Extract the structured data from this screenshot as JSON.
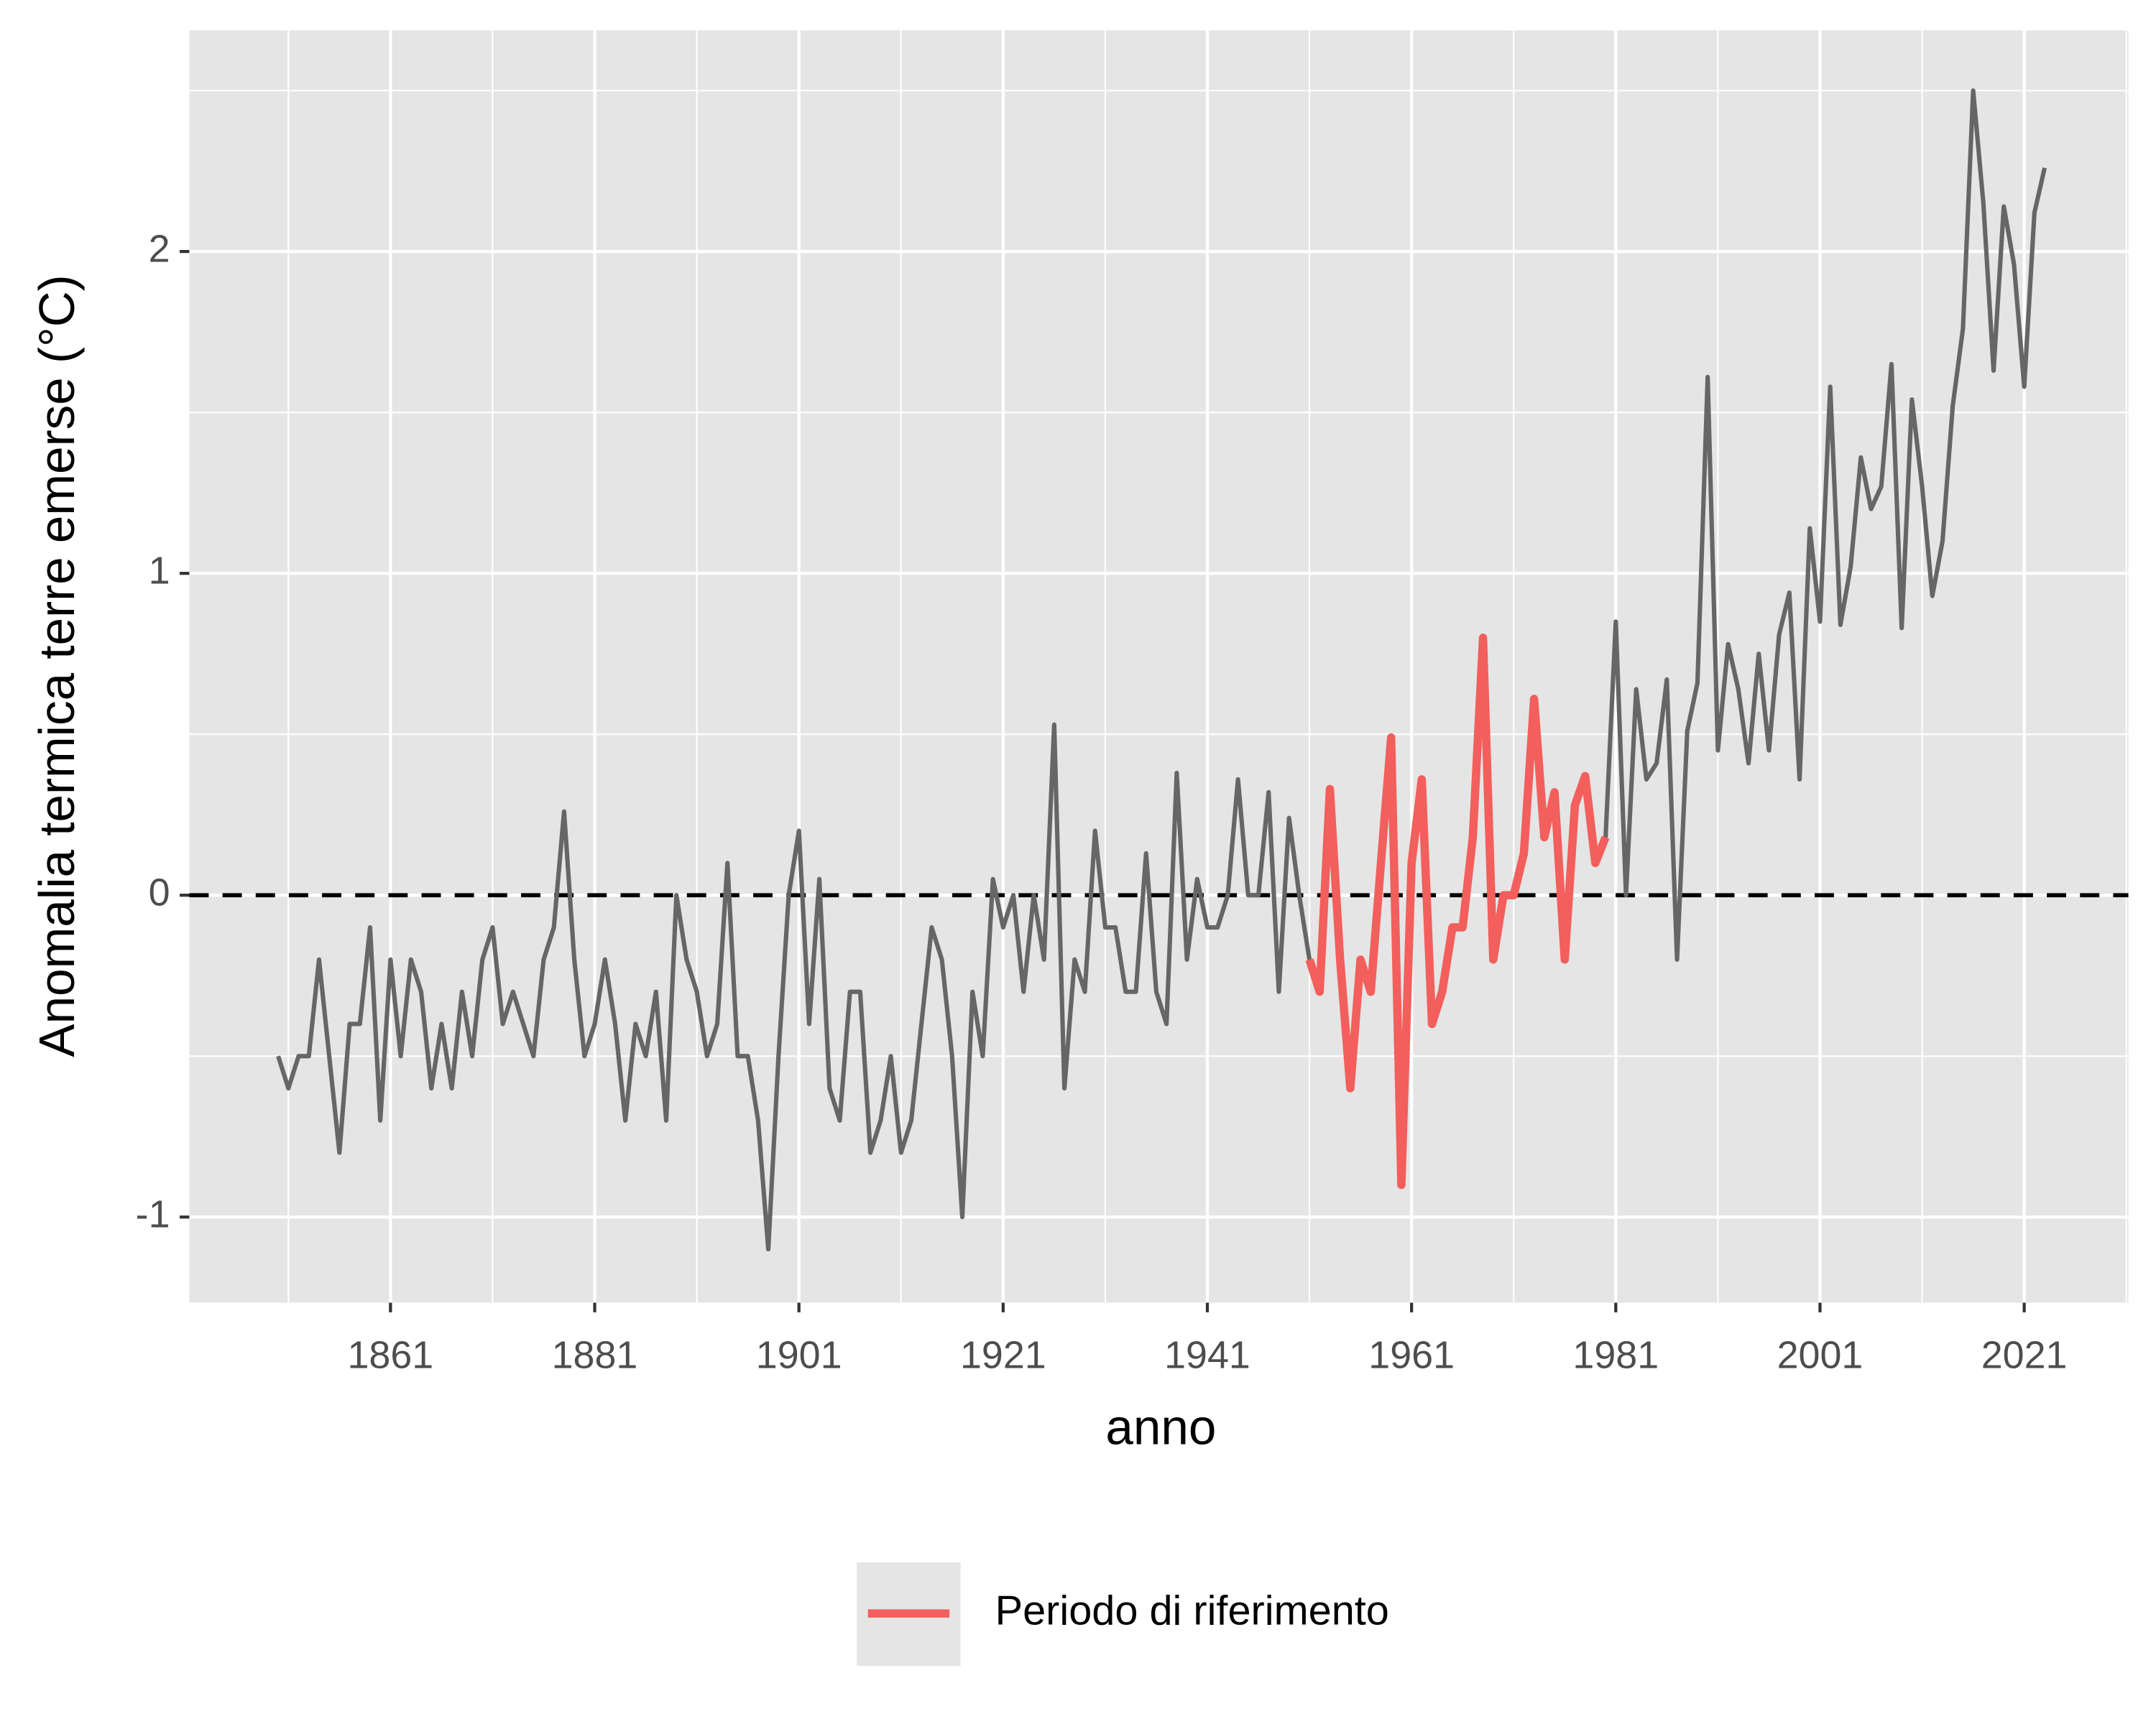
{
  "chart_data": {
    "type": "line",
    "x_label": "anno",
    "y_label": "Anomalia termica terre emerse (°C)",
    "x": [
      1850,
      1851,
      1852,
      1853,
      1854,
      1855,
      1856,
      1857,
      1858,
      1859,
      1860,
      1861,
      1862,
      1863,
      1864,
      1865,
      1866,
      1867,
      1868,
      1869,
      1870,
      1871,
      1872,
      1873,
      1874,
      1875,
      1876,
      1877,
      1878,
      1879,
      1880,
      1881,
      1882,
      1883,
      1884,
      1885,
      1886,
      1887,
      1888,
      1889,
      1890,
      1891,
      1892,
      1893,
      1894,
      1895,
      1896,
      1897,
      1898,
      1899,
      1900,
      1901,
      1902,
      1903,
      1904,
      1905,
      1906,
      1907,
      1908,
      1909,
      1910,
      1911,
      1912,
      1913,
      1914,
      1915,
      1916,
      1917,
      1918,
      1919,
      1920,
      1921,
      1922,
      1923,
      1924,
      1925,
      1926,
      1927,
      1928,
      1929,
      1930,
      1931,
      1932,
      1933,
      1934,
      1935,
      1936,
      1937,
      1938,
      1939,
      1940,
      1941,
      1942,
      1943,
      1944,
      1945,
      1946,
      1947,
      1948,
      1949,
      1950,
      1951,
      1952,
      1953,
      1954,
      1955,
      1956,
      1957,
      1958,
      1959,
      1960,
      1961,
      1962,
      1963,
      1964,
      1965,
      1966,
      1967,
      1968,
      1969,
      1970,
      1971,
      1972,
      1973,
      1974,
      1975,
      1976,
      1977,
      1978,
      1979,
      1980,
      1981,
      1982,
      1983,
      1984,
      1985,
      1986,
      1987,
      1988,
      1989,
      1990,
      1991,
      1992,
      1993,
      1994,
      1995,
      1996,
      1997,
      1998,
      1999,
      2000,
      2001,
      2002,
      2003,
      2004,
      2005,
      2006,
      2007,
      2008,
      2009,
      2010,
      2011,
      2012,
      2013,
      2014,
      2015,
      2016,
      2017,
      2018,
      2019,
      2020,
      2021,
      2022,
      2023
    ],
    "series": [
      {
        "color": "#666666",
        "values": [
          -0.5,
          -0.6,
          -0.5,
          -0.5,
          -0.2,
          -0.5,
          -0.8,
          -0.4,
          -0.4,
          -0.1,
          -0.7,
          -0.2,
          -0.5,
          -0.2,
          -0.3,
          -0.6,
          -0.4,
          -0.6,
          -0.3,
          -0.5,
          -0.2,
          -0.1,
          -0.4,
          -0.3,
          -0.4,
          -0.5,
          -0.2,
          -0.1,
          0.26,
          -0.2,
          -0.5,
          -0.4,
          -0.2,
          -0.4,
          -0.7,
          -0.4,
          -0.5,
          -0.3,
          -0.7,
          0.0,
          -0.2,
          -0.3,
          -0.5,
          -0.4,
          0.1,
          -0.5,
          -0.5,
          -0.7,
          -1.1,
          -0.5,
          0.0,
          0.2,
          -0.4,
          0.05,
          -0.6,
          -0.7,
          -0.3,
          -0.3,
          -0.8,
          -0.7,
          -0.5,
          -0.8,
          -0.7,
          -0.4,
          -0.1,
          -0.2,
          -0.5,
          -1.0,
          -0.3,
          -0.5,
          0.05,
          -0.1,
          0.0,
          -0.3,
          0.0,
          -0.2,
          0.53,
          -0.6,
          -0.2,
          -0.3,
          0.2,
          -0.1,
          -0.1,
          -0.3,
          -0.3,
          0.13,
          -0.3,
          -0.4,
          0.38,
          -0.2,
          0.05,
          -0.1,
          -0.1,
          0.0,
          0.36,
          0.0,
          0.0,
          0.32,
          -0.3,
          0.24,
          0.0,
          -0.2,
          -0.3,
          0.33,
          -0.2,
          -0.6,
          -0.2,
          -0.3,
          0.1,
          0.49,
          -0.9,
          0.1,
          0.36,
          -0.4,
          -0.3,
          -0.1,
          -0.1,
          0.18,
          0.8,
          -0.2,
          0.0,
          0.0,
          0.13,
          0.61,
          0.18,
          0.32,
          -0.2,
          0.28,
          0.37,
          0.1,
          0.18,
          0.85,
          0.0,
          0.64,
          0.36,
          0.41,
          0.67,
          -0.2,
          0.51,
          0.66,
          1.61,
          0.45,
          0.78,
          0.64,
          0.41,
          0.75,
          0.45,
          0.81,
          0.94,
          0.36,
          1.14,
          0.85,
          1.58,
          0.84,
          1.02,
          1.36,
          1.2,
          1.27,
          1.65,
          0.83,
          1.54,
          1.27,
          0.93,
          1.1,
          1.52,
          1.76,
          2.5,
          2.15,
          1.63,
          2.14,
          1.96,
          1.58,
          2.12,
          2.26
        ]
      },
      {
        "name": "Periodo di riferimento",
        "color": "#f25f5c",
        "values": [
          null,
          null,
          null,
          null,
          null,
          null,
          null,
          null,
          null,
          null,
          null,
          null,
          null,
          null,
          null,
          null,
          null,
          null,
          null,
          null,
          null,
          null,
          null,
          null,
          null,
          null,
          null,
          null,
          null,
          null,
          null,
          null,
          null,
          null,
          null,
          null,
          null,
          null,
          null,
          null,
          null,
          null,
          null,
          null,
          null,
          null,
          null,
          null,
          null,
          null,
          null,
          null,
          null,
          null,
          null,
          null,
          null,
          null,
          null,
          null,
          null,
          null,
          null,
          null,
          null,
          null,
          null,
          null,
          null,
          null,
          null,
          null,
          null,
          null,
          null,
          null,
          null,
          null,
          null,
          null,
          null,
          null,
          null,
          null,
          null,
          null,
          null,
          null,
          null,
          null,
          null,
          null,
          null,
          null,
          null,
          null,
          null,
          null,
          null,
          null,
          null,
          -0.2,
          -0.3,
          0.33,
          -0.2,
          -0.6,
          -0.2,
          -0.3,
          0.1,
          0.49,
          -0.9,
          0.1,
          0.36,
          -0.4,
          -0.3,
          -0.1,
          -0.1,
          0.18,
          0.8,
          -0.2,
          0.0,
          0.0,
          0.13,
          0.61,
          0.18,
          0.32,
          -0.2,
          0.28,
          0.37,
          0.1,
          0.18,
          null,
          null,
          null,
          null,
          null,
          null,
          null,
          null,
          null,
          null,
          null,
          null,
          null,
          null,
          null,
          null,
          null,
          null,
          null,
          null,
          null,
          null,
          null,
          null,
          null,
          null,
          null,
          null,
          null,
          null,
          null,
          null,
          null,
          null,
          null,
          null,
          null,
          null,
          null,
          null,
          null,
          null,
          null
        ]
      }
    ],
    "hline": 0,
    "xlim": [
      1841.3,
      2031.2
    ],
    "xticks": [
      1861,
      1881,
      1901,
      1921,
      1941,
      1961,
      1981,
      2001,
      2021
    ],
    "ylim": [
      -1.266,
      2.687
    ],
    "yticks": [
      -1,
      0,
      1,
      2
    ],
    "grid": true,
    "legend": "bottom"
  }
}
